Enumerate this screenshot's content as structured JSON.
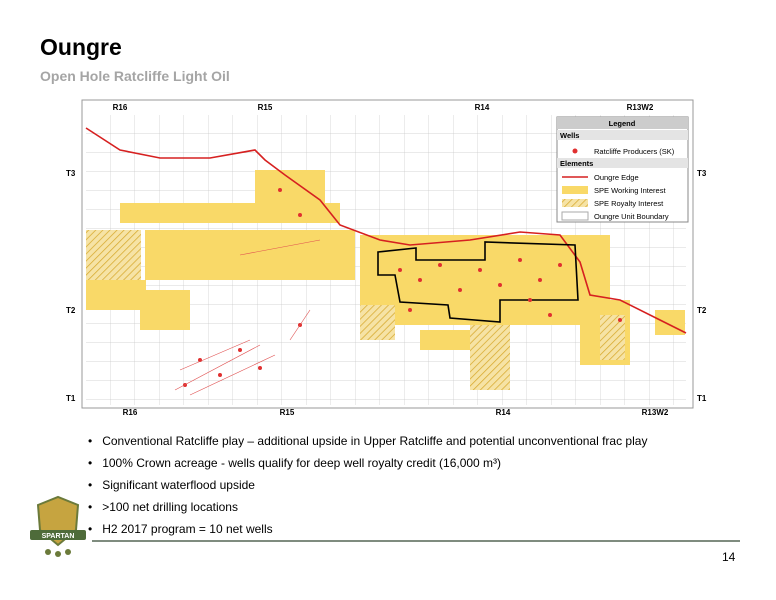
{
  "header": {
    "title": "Oungre",
    "subtitle": "Open Hole Ratcliffe Light Oil"
  },
  "map": {
    "top_ranges": [
      "R16",
      "R15",
      "R14",
      "R13W2"
    ],
    "bottom_ranges": [
      "R16",
      "R15",
      "R14",
      "R13W2"
    ],
    "left_townships": [
      "T3",
      "T2",
      "T1"
    ],
    "right_townships": [
      "T3",
      "T2",
      "T1"
    ],
    "legend": {
      "title": "Legend",
      "wells_heading": "Wells",
      "wells_item": "Ratcliffe Producers (SK)",
      "elements_heading": "Elements",
      "items": [
        "Oungre Edge",
        "SPE Working Interest",
        "SPE Royalty Interest",
        "Oungre Unit Boundary"
      ]
    }
  },
  "bullets": [
    "Conventional Ratcliffe play – additional upside in Upper Ratcliffe and potential unconventional frac play",
    "100% Crown acreage - wells qualify for deep well royalty credit (16,000 m³)",
    "Significant waterflood upside",
    ">100 net drilling locations",
    "H2 2017 program = 10 net wells"
  ],
  "logo": {
    "text": "SPARTAN"
  },
  "page_number": "14"
}
